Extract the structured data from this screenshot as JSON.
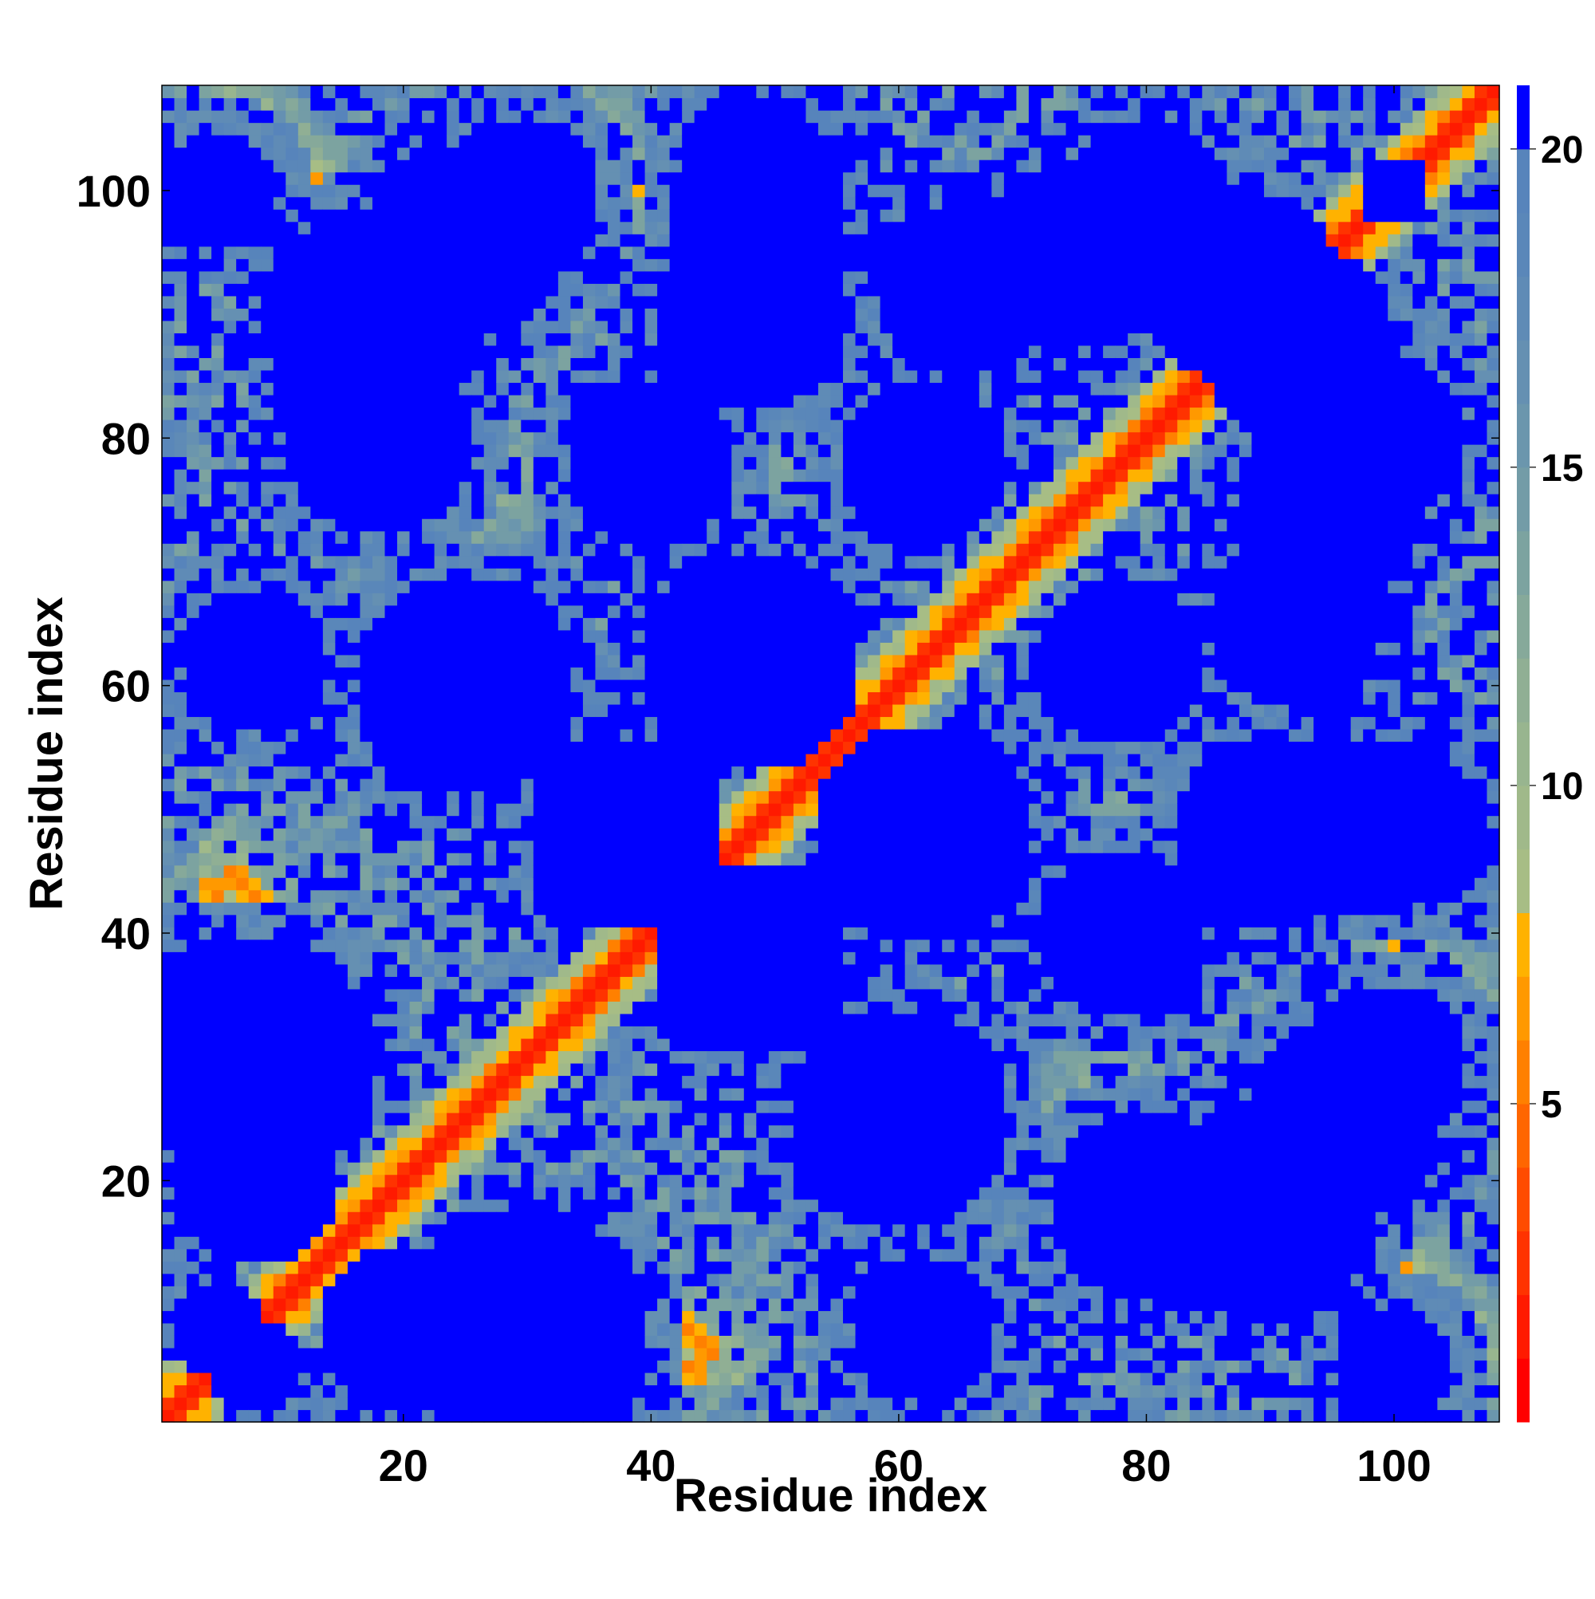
{
  "chart_data": {
    "type": "heatmap",
    "title": "",
    "xlabel": "Residue index",
    "ylabel": "Residue index",
    "n": 108,
    "xlim": [
      0.5,
      108.5
    ],
    "ylim": [
      0.5,
      108.5
    ],
    "x_ticks": [
      20,
      40,
      60,
      80,
      100
    ],
    "y_ticks": [
      20,
      40,
      60,
      80,
      100
    ],
    "x_tick_labels": [
      "20",
      "40",
      "60",
      "80",
      "100"
    ],
    "y_tick_labels": [
      "20",
      "40",
      "60",
      "80",
      "100"
    ],
    "colorbar": {
      "range": [
        0,
        21
      ],
      "ticks": [
        5,
        10,
        15,
        20
      ],
      "tick_labels": [
        "5",
        "10",
        "15",
        "20"
      ],
      "bands": [
        {
          "from": 0,
          "to": 1,
          "color": "#ff0000"
        },
        {
          "from": 1,
          "to": 2,
          "color": "#ff1a00"
        },
        {
          "from": 2,
          "to": 3,
          "color": "#ff3300"
        },
        {
          "from": 3,
          "to": 4,
          "color": "#ff4c00"
        },
        {
          "from": 4,
          "to": 5,
          "color": "#ff6600"
        },
        {
          "from": 5,
          "to": 6,
          "color": "#ff8000"
        },
        {
          "from": 6,
          "to": 7,
          "color": "#ff9900"
        },
        {
          "from": 7,
          "to": 8,
          "color": "#ffb200"
        },
        {
          "from": 8,
          "to": 9,
          "color": "#a7bd85"
        },
        {
          "from": 9,
          "to": 10,
          "color": "#a0b98a"
        },
        {
          "from": 10,
          "to": 11,
          "color": "#98b58f"
        },
        {
          "from": 11,
          "to": 12,
          "color": "#90af94"
        },
        {
          "from": 12,
          "to": 13,
          "color": "#86a99a"
        },
        {
          "from": 13,
          "to": 14,
          "color": "#7ca3a0"
        },
        {
          "from": 14,
          "to": 15,
          "color": "#739ca7"
        },
        {
          "from": 15,
          "to": 16,
          "color": "#6b96ad"
        },
        {
          "from": 16,
          "to": 17,
          "color": "#6590b2"
        },
        {
          "from": 17,
          "to": 18,
          "color": "#5f8bb6"
        },
        {
          "from": 18,
          "to": 19,
          "color": "#5a87b9"
        },
        {
          "from": 19,
          "to": 20,
          "color": "#5784bb"
        },
        {
          "from": 20,
          "to": 21,
          "color": "#0000ff"
        }
      ]
    },
    "description_of_values": "Symmetric residue-residue distance map (Å), capped at 21; diagonal ~0, secondary-structure contacts 4-8, background >20",
    "structure": {
      "diagonal_halfwidth": 1.5,
      "near_diagonal_band": 4,
      "antidiagonal_contacts": [
        {
          "center": [
            44,
            44
          ],
          "len": 12,
          "dir": "anti"
        },
        {
          "center": [
            10,
            41
          ],
          "len": 8,
          "dir": "anti"
        },
        {
          "center": [
            40,
            8
          ],
          "len": 8,
          "dir": "anti"
        },
        {
          "center": [
            53,
            85
          ],
          "len": 10,
          "dir": "anti"
        },
        {
          "center": [
            85,
            53
          ],
          "len": 10,
          "dir": "anti"
        },
        {
          "center": [
            36,
            104
          ],
          "len": 8,
          "dir": "anti"
        },
        {
          "center": [
            104,
            36
          ],
          "len": 8,
          "dir": "anti"
        },
        {
          "center": [
            10,
            104
          ],
          "len": 6,
          "dir": "anti"
        },
        {
          "center": [
            104,
            10
          ],
          "len": 6,
          "dir": "anti"
        }
      ],
      "parallel_contacts": [
        {
          "center": [
            54,
            84
          ],
          "len": 8
        },
        {
          "center": [
            84,
            54
          ],
          "len": 8
        },
        {
          "center": [
            22,
            70
          ],
          "len": 10
        },
        {
          "center": [
            70,
            22
          ],
          "len": 10
        }
      ],
      "voids": [
        [
          30,
          8,
          10
        ],
        [
          60,
          25,
          9
        ],
        [
          80,
          18,
          8
        ],
        [
          96,
          25,
          8
        ],
        [
          38,
          48,
          8
        ],
        [
          62,
          48,
          9
        ],
        [
          90,
          48,
          8
        ],
        [
          102,
          48,
          6
        ],
        [
          18,
          90,
          9
        ],
        [
          48,
          62,
          8
        ],
        [
          65,
          92,
          7
        ],
        [
          88,
          92,
          8
        ],
        [
          40,
          78,
          7
        ],
        [
          62,
          78,
          7
        ],
        [
          95,
          75,
          8
        ],
        [
          50,
          100,
          6
        ],
        [
          8,
          20,
          7
        ],
        [
          8,
          62,
          6
        ],
        [
          30,
          100,
          6
        ],
        [
          80,
          100,
          6
        ],
        [
          8,
          5,
          4
        ],
        [
          100,
          5,
          5
        ],
        [
          100,
          100,
          3
        ]
      ]
    }
  }
}
